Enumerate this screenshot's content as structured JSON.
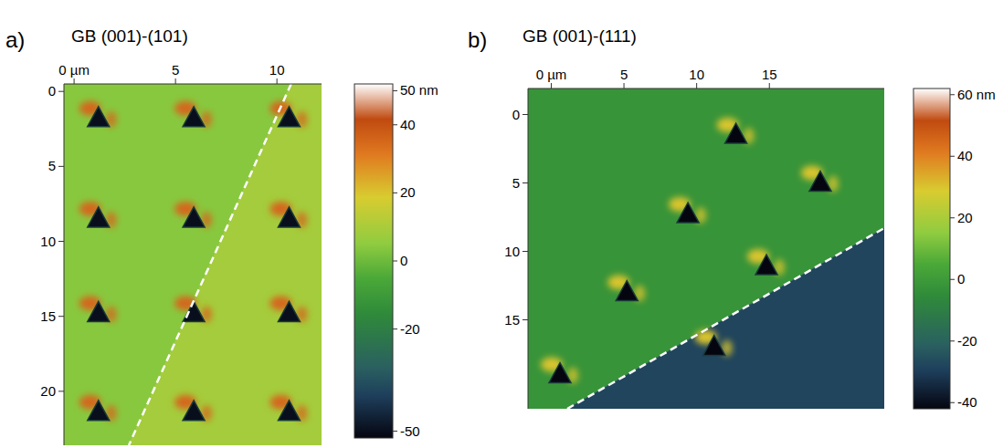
{
  "chart_data": [
    {
      "type": "height_map",
      "panel": "a)",
      "title": "GB (001)-(101)",
      "xlim": [
        -0.5,
        12.2
      ],
      "xticks": [
        {
          "value": 0,
          "label": "0 µm"
        },
        5,
        10
      ],
      "ylim": [
        -0.5,
        23.6
      ],
      "yticks": [
        0,
        5,
        10,
        15,
        20
      ],
      "indents": {
        "x": [
          1.2,
          5.9,
          10.6,
          1.2,
          5.9,
          10.6,
          1.2,
          5.9,
          10.6,
          1.2,
          5.9,
          10.6
        ],
        "y": [
          1.8,
          1.8,
          1.8,
          8.5,
          8.5,
          8.5,
          14.8,
          14.8,
          14.8,
          21.4,
          21.4,
          21.4
        ]
      },
      "indent_depth": -50,
      "pileup_height": 35,
      "grain_boundary": {
        "x": [
          10.7,
          2.7
        ],
        "y": [
          -0.5,
          23.6
        ]
      },
      "grain_heights": [
        4,
        9
      ],
      "color_range": [
        -52,
        52
      ],
      "color_ticks": [
        {
          "value": 50,
          "label": "50 nm"
        },
        40,
        20,
        0,
        -20,
        -50
      ]
    },
    {
      "type": "height_map",
      "panel": "b)",
      "title": "GB (001)-(111)",
      "xlim": [
        -1.6,
        22.9
      ],
      "xticks": [
        {
          "value": 0,
          "label": "0 µm"
        },
        5,
        10,
        15
      ],
      "ylim": [
        -1.9,
        21.5
      ],
      "yticks": [
        0,
        5,
        10,
        15
      ],
      "indents": {
        "x": [
          12.7,
          18.5,
          9.4,
          14.8,
          5.2,
          11.2,
          0.6
        ],
        "y": [
          1.5,
          5.0,
          7.3,
          11.1,
          13.0,
          17.0,
          19.0
        ]
      },
      "indent_depth": -42,
      "pileup_height": 30,
      "grain_boundary": {
        "x": [
          1.1,
          22.9
        ],
        "y": [
          21.5,
          8.3
        ]
      },
      "grain_heights": [
        -2,
        -28
      ],
      "color_range": [
        -42,
        62
      ],
      "color_ticks": [
        {
          "value": 60,
          "label": "60 nm"
        },
        40,
        20,
        0,
        -20,
        -40
      ]
    }
  ]
}
